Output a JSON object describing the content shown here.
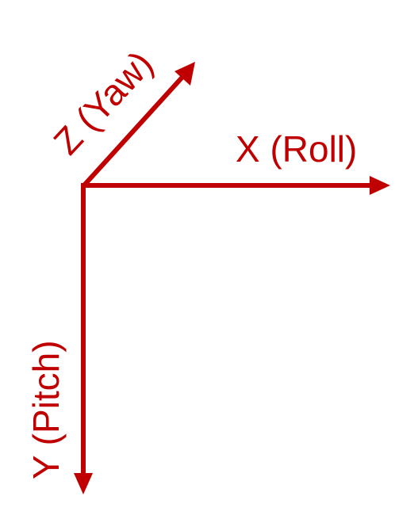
{
  "colors": {
    "axis": "#c00000",
    "background": "#ffffff"
  },
  "axes": {
    "x_label": "X (Roll)",
    "y_label": "Y (Pitch)",
    "z_label": "Z (Yaw)"
  }
}
